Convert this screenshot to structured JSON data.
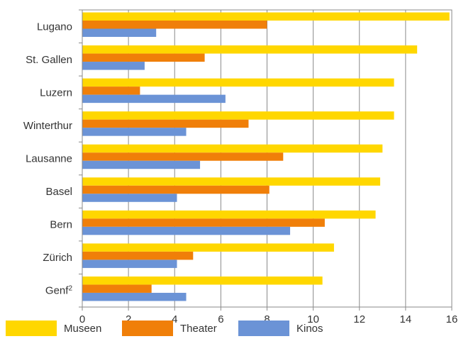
{
  "chart_data": {
    "type": "bar",
    "orientation": "horizontal",
    "categories": [
      "Lugano",
      "St. Gallen",
      "Luzern",
      "Winterthur",
      "Lausanne",
      "Basel",
      "Bern",
      "Zürich",
      "Genf"
    ],
    "category_superscripts": {
      "Genf": "2"
    },
    "series": [
      {
        "name": "Museen",
        "color": "#ffd700",
        "values": [
          15.9,
          14.5,
          13.5,
          13.5,
          13.0,
          12.9,
          12.7,
          10.9,
          10.4
        ]
      },
      {
        "name": "Theater",
        "color": "#f07f09",
        "values": [
          8.0,
          5.3,
          2.5,
          7.2,
          8.7,
          8.1,
          10.5,
          4.8,
          3.0
        ]
      },
      {
        "name": "Kinos",
        "color": "#6b93d6",
        "values": [
          3.2,
          2.7,
          6.2,
          4.5,
          5.1,
          4.1,
          9.0,
          4.1,
          4.5
        ]
      }
    ],
    "xlim": [
      0,
      16
    ],
    "xticks": [
      "0",
      "2",
      "4",
      "6",
      "8",
      "10",
      "12",
      "14",
      "16"
    ],
    "grid": true,
    "legend": "bottom"
  }
}
